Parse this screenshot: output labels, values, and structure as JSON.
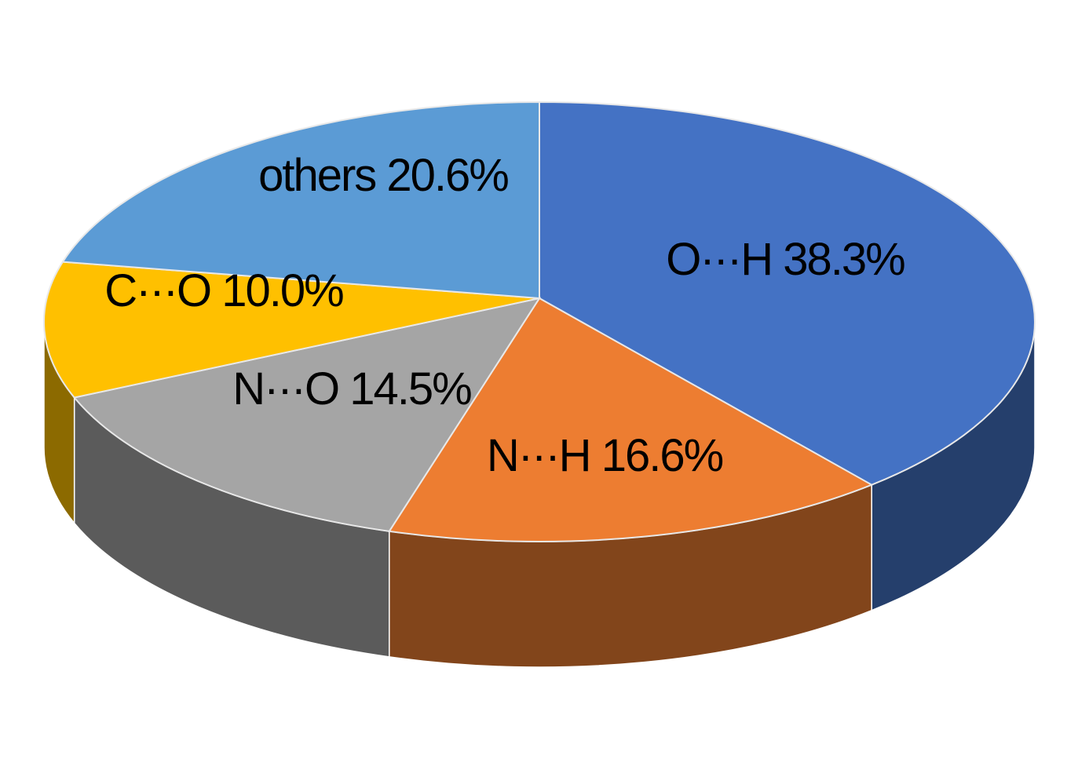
{
  "chart_data": {
    "type": "pie",
    "categories": [
      "O···H",
      "N···H",
      "N···O",
      "C···O",
      "others"
    ],
    "values": [
      38.3,
      16.6,
      14.5,
      10.0,
      20.6
    ],
    "value_labels": [
      "38.3%",
      "16.6%",
      "14.5%",
      "10.0%",
      "20.6%"
    ],
    "colors": [
      "#4472c4",
      "#ed7d31",
      "#a5a5a5",
      "#ffc000",
      "#5b9bd5"
    ]
  }
}
